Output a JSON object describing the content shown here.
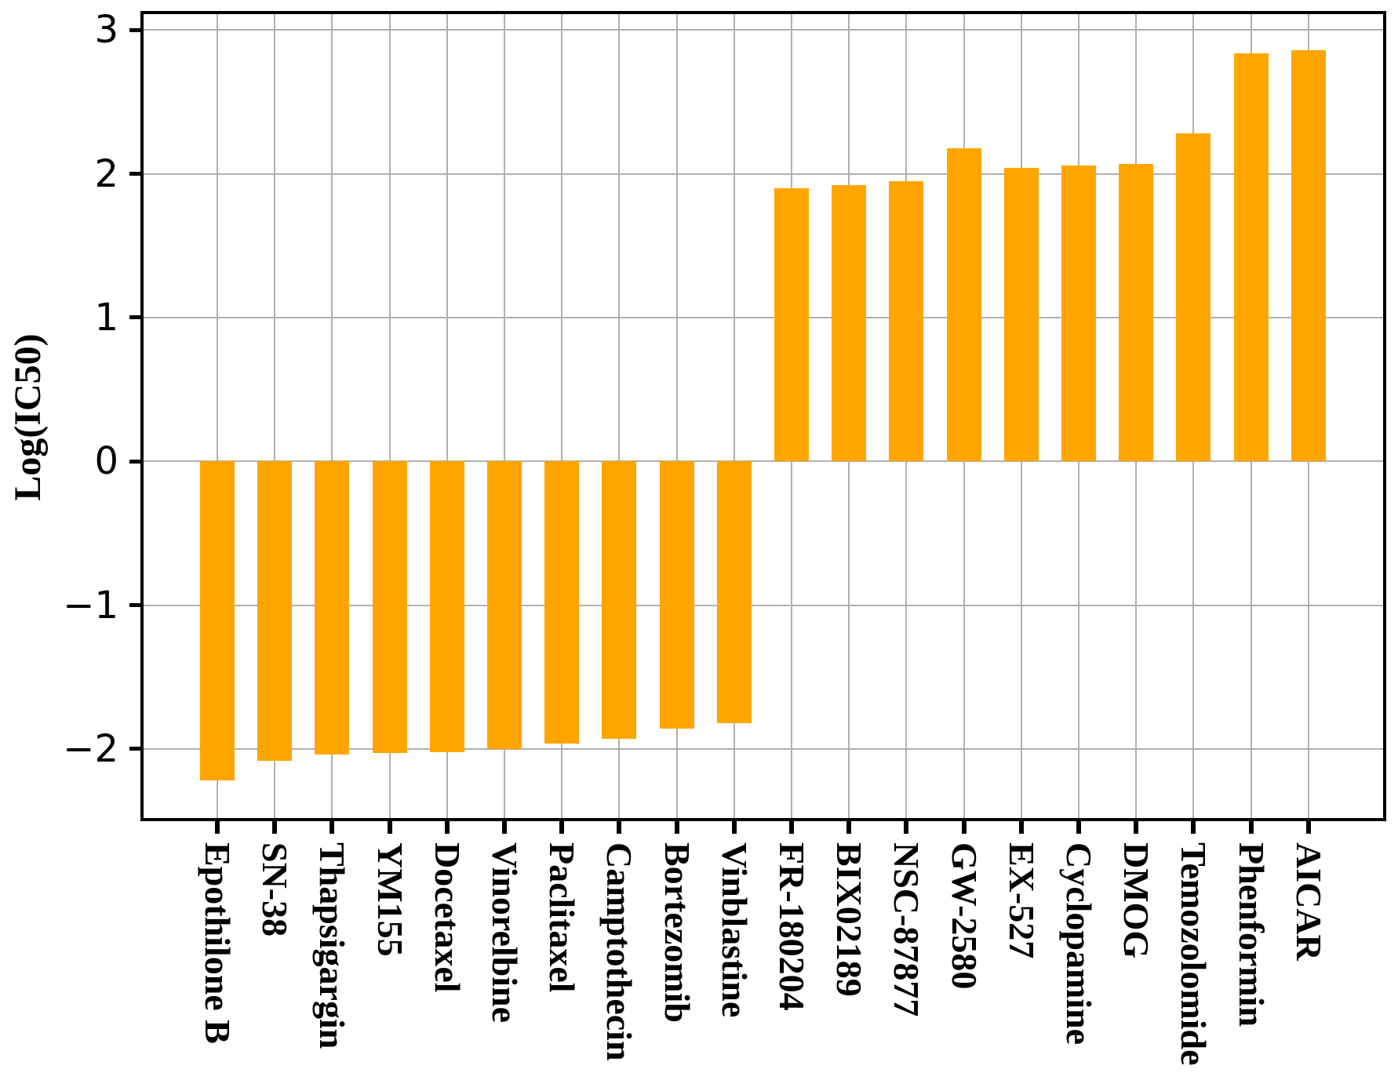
{
  "figure": {
    "background": "#ffffff"
  },
  "chart_data": {
    "type": "bar",
    "title": "",
    "xlabel": "",
    "ylabel": "Log(IC50)",
    "categories": [
      "Epothilone B",
      "SN-38",
      "Thapsigargin",
      "YM155",
      "Docetaxel",
      "Vinorelbine",
      "Paclitaxel",
      "Camptothecin",
      "Bortezomib",
      "Vinblastine",
      "FR-180204",
      "BIX02189",
      "NSC-87877",
      "GW-2580",
      "EX-527",
      "Cyclopamine",
      "DMOG",
      "Temozolomide",
      "Phenformin",
      "AICAR"
    ],
    "values": [
      -2.22,
      -2.08,
      -2.04,
      -2.03,
      -2.02,
      -2.0,
      -1.96,
      -1.93,
      -1.86,
      -1.82,
      1.9,
      1.92,
      1.95,
      2.18,
      2.04,
      2.06,
      2.07,
      2.28,
      2.84,
      2.86
    ],
    "ylim": [
      -2.48,
      3.11
    ],
    "yticks": [
      3,
      2,
      1,
      0,
      -1,
      -2
    ],
    "ytick_labels": [
      "3",
      "2",
      "1",
      "0",
      "−1",
      "−2"
    ],
    "grid": "on",
    "legend": "none",
    "bar_color": "#FFA500",
    "gridline_color": "#b0b0b0",
    "axis_color": "#000000",
    "text_color": "#000000"
  }
}
